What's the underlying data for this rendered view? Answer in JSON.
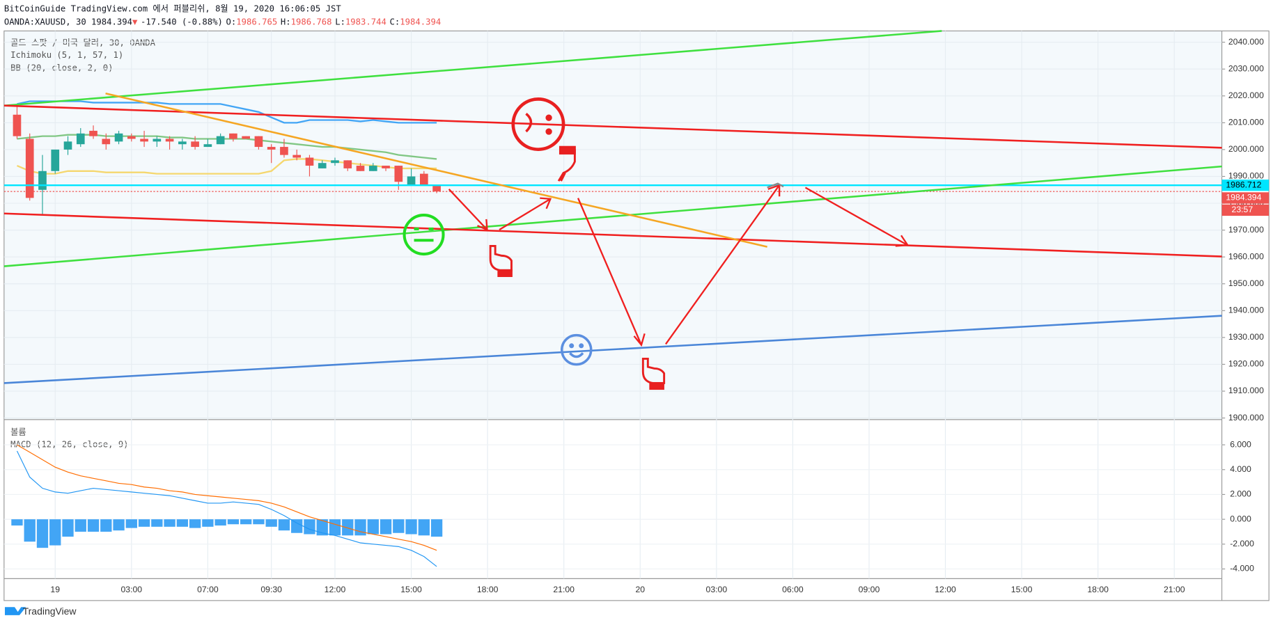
{
  "header": {
    "published": "BitCoinGuide TradingView.com 에서 퍼블리쉬, 8월 19, 2020 16:06:05 JST",
    "symbol": "OANDA:XAUUSD, 30 1984.394",
    "arrow": "▼",
    "change": "-17.540 (-0.88%)",
    "ohlc": [
      {
        "label": "O:",
        "value": "1986.765"
      },
      {
        "label": "H:",
        "value": "1986.768"
      },
      {
        "label": "L:",
        "value": "1983.744"
      },
      {
        "label": "C:",
        "value": "1984.394"
      }
    ]
  },
  "chart_data": [
    {
      "type": "candlestick",
      "legend": [
        "골드 스팟 / 미국 달러, 30, OANDA",
        "Ichimoku (5, 1, 57, 1)",
        "BB (20, close, 2, 0)"
      ],
      "up_color": "#26a69a",
      "down_color": "#ef5350",
      "x": [
        -3,
        -2,
        -1,
        0,
        1,
        2,
        3,
        4,
        5,
        6,
        7,
        8,
        9,
        10,
        11,
        12,
        13,
        14,
        15,
        16,
        17,
        18,
        19,
        20,
        21,
        22,
        23,
        24,
        25,
        26,
        27,
        28,
        29,
        30
      ],
      "open": [
        2013,
        2004,
        1985,
        1992,
        2000,
        2002,
        2007,
        2004,
        2003,
        2005,
        2004,
        2003,
        2004,
        2002,
        2003,
        2001,
        2002,
        2006,
        2005,
        2005,
        2001,
        2001,
        1998,
        1997,
        1993,
        1995,
        1996,
        1994,
        1992,
        1994,
        1994,
        1987,
        1991,
        1986.765
      ],
      "high": [
        2016,
        2006,
        1998,
        2000,
        2005,
        2008,
        2009,
        2006,
        2007,
        2006,
        2007,
        2005,
        2005,
        2004,
        2005,
        2004,
        2006,
        2006,
        2005,
        2005,
        2002,
        2004,
        2000,
        1998,
        1996,
        1997,
        1996,
        1995,
        1995,
        1994,
        1994,
        1993,
        1992,
        1986.768
      ],
      "low": [
        2004,
        1981,
        1976,
        1991,
        1998,
        2001,
        2004,
        2000,
        2002,
        2003,
        2001,
        2001,
        2000,
        2000,
        2000,
        2001,
        2002,
        2003,
        2004,
        2000,
        1995,
        1997,
        1996,
        1990,
        1993,
        1994,
        1992,
        1992,
        1992,
        1992,
        1985,
        1987,
        1987,
        1983.744
      ],
      "close": [
        2005,
        1982,
        1992,
        2000,
        2003,
        2006,
        2005,
        2002,
        2006,
        2004,
        2003,
        2004,
        2003,
        2003,
        2001,
        2002,
        2005,
        2004,
        2004,
        2001,
        2000,
        1998,
        1997,
        1994,
        1995,
        1996,
        1993,
        1992,
        1994,
        1993,
        1988,
        1990,
        1987,
        1984.394
      ],
      "overlays": [
        {
          "color": "#42a5f5",
          "values": [
            2017,
            2018,
            2018,
            2018,
            2018,
            2018,
            2017.5,
            2017.5,
            2017.5,
            2017.5,
            2017.5,
            2017.5,
            2017,
            2017,
            2017,
            2017,
            2017,
            2016,
            2015,
            2014,
            2012,
            2010,
            2010,
            2011,
            2011,
            2011,
            2011,
            2010.5,
            2011,
            2010.5,
            2010,
            2010,
            2010,
            2010
          ]
        },
        {
          "color": "#81c784",
          "values": [
            2004,
            2004.5,
            2005,
            2005,
            2005.5,
            2005.5,
            2005.5,
            2005,
            2005,
            2005,
            2005,
            2005,
            2004.5,
            2004.5,
            2004,
            2004,
            2004,
            2004,
            2004,
            2003.5,
            2003,
            2002.5,
            2002,
            2001.5,
            2001,
            2001,
            2000.5,
            2000,
            1999.5,
            1999,
            1998,
            1997.5,
            1997,
            1996.5
          ]
        },
        {
          "color": "#f5d76e",
          "values": [
            1994,
            1992,
            1991,
            1991,
            1992,
            1992,
            1992,
            1991.5,
            1991.5,
            1991.5,
            1991.5,
            1991,
            1991,
            1991,
            1991,
            1991,
            1991,
            1991,
            1991,
            1991,
            1992,
            1996,
            1996.5,
            1996.5,
            1996,
            1995.5,
            1995,
            1994.5,
            1994,
            1993.5,
            1993,
            1993,
            1993,
            1993
          ]
        }
      ],
      "xlim": [
        -4.02,
        91.74
      ],
      "xticks": [
        {
          "value": 0,
          "label": "19"
        },
        {
          "value": 6,
          "label": "03:00"
        },
        {
          "value": 12,
          "label": "07:00"
        },
        {
          "value": 17,
          "label": "09:30"
        },
        {
          "value": 22,
          "label": "12:00"
        },
        {
          "value": 28,
          "label": "15:00"
        },
        {
          "value": 34,
          "label": "18:00"
        },
        {
          "value": 40,
          "label": "21:00"
        },
        {
          "value": 46,
          "label": "20"
        },
        {
          "value": 52,
          "label": "03:00"
        },
        {
          "value": 58,
          "label": "06:00"
        },
        {
          "value": 64,
          "label": "09:00"
        },
        {
          "value": 70,
          "label": "12:00"
        },
        {
          "value": 76,
          "label": "15:00"
        },
        {
          "value": 82,
          "label": "18:00"
        },
        {
          "value": 88,
          "label": "21:00"
        }
      ],
      "ylim": [
        1899.4,
        2044.2
      ],
      "yticks": [
        {
          "value": 1900,
          "label": "1900.000"
        },
        {
          "value": 1910,
          "label": "1910.000"
        },
        {
          "value": 1920,
          "label": "1920.000"
        },
        {
          "value": 1930,
          "label": "1930.000"
        },
        {
          "value": 1940,
          "label": "1940.000"
        },
        {
          "value": 1950,
          "label": "1950.000"
        },
        {
          "value": 1960,
          "label": "1960.000"
        },
        {
          "value": 1970,
          "label": "1970.000"
        },
        {
          "value": 1980,
          "label": "1980.000"
        },
        {
          "value": 1990,
          "label": "1990.000"
        },
        {
          "value": 2000,
          "label": "2000.000"
        },
        {
          "value": 2010,
          "label": "2010.000"
        },
        {
          "value": 2020,
          "label": "2020.000"
        },
        {
          "value": 2030,
          "label": "2030.000"
        },
        {
          "value": 2040,
          "label": "2040.000"
        }
      ],
      "grid": true,
      "price_labels": [
        {
          "value": 1986.712,
          "color": "#00e5ff"
        },
        {
          "value": 1984.394,
          "color": "#ef5350"
        }
      ],
      "countdown": "23:57"
    },
    {
      "type": "macd",
      "legend": [
        "볼륨",
        "MACD (12, 26, close, 9)"
      ],
      "series": [
        {
          "color": "#2196f3",
          "values": [
            5.5,
            3.4,
            2.5,
            2.2,
            2.1,
            2.3,
            2.5,
            2.4,
            2.3,
            2.2,
            2.1,
            2.0,
            1.9,
            1.7,
            1.5,
            1.3,
            1.3,
            1.4,
            1.3,
            1.2,
            0.8,
            0.3,
            -0.3,
            -0.8,
            -1.1,
            -1.3,
            -1.6,
            -1.9,
            -2.0,
            -2.1,
            -2.2,
            -2.5,
            -3.0,
            -3.8
          ]
        },
        {
          "color": "#ff6d00",
          "values": [
            6.0,
            5.4,
            4.8,
            4.2,
            3.8,
            3.5,
            3.3,
            3.1,
            2.9,
            2.8,
            2.6,
            2.5,
            2.3,
            2.2,
            2.0,
            1.9,
            1.8,
            1.7,
            1.6,
            1.5,
            1.3,
            1.0,
            0.6,
            0.2,
            -0.1,
            -0.4,
            -0.7,
            -1.0,
            -1.2,
            -1.4,
            -1.6,
            -1.8,
            -2.1,
            -2.5
          ]
        }
      ],
      "histogram": {
        "color": "#42a5f5",
        "values": [
          -0.5,
          -1.8,
          -2.3,
          -2.1,
          -1.4,
          -1.0,
          -1.0,
          -1.0,
          -0.9,
          -0.7,
          -0.6,
          -0.6,
          -0.6,
          -0.6,
          -0.7,
          -0.6,
          -0.5,
          -0.4,
          -0.4,
          -0.4,
          -0.6,
          -0.9,
          -1.1,
          -1.2,
          -1.3,
          -1.3,
          -1.3,
          -1.3,
          -1.2,
          -1.2,
          -1.1,
          -1.2,
          -1.3,
          -1.4
        ]
      },
      "ylim": [
        -4.78,
        8.03
      ],
      "yticks": [
        {
          "value": -4,
          "label": "-4.000"
        },
        {
          "value": -2,
          "label": "-2.000"
        },
        {
          "value": 0,
          "label": "0.000"
        },
        {
          "value": 2,
          "label": "2.000"
        },
        {
          "value": 4,
          "label": "4.000"
        },
        {
          "value": 6,
          "label": "6.000"
        }
      ]
    }
  ],
  "footer": "TradingView"
}
